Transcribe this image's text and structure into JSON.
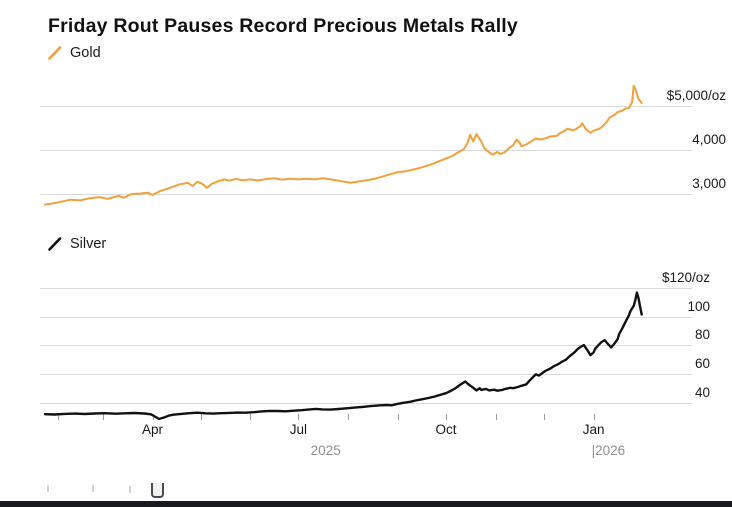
{
  "title": "Friday Rout Pauses Record Precious Metals Rally",
  "colors": {
    "gold": "#F2A13A",
    "silver": "#111111",
    "gridline": "#D9D9D9",
    "axis_text": "#1A1A1A",
    "muted_text": "#8F8F8F",
    "background": "#FFFFFF",
    "bottom_bar": "#171A1E"
  },
  "x_axis": {
    "start_date": "2025-01-24",
    "ticks_days": [
      8,
      36,
      67,
      97,
      128,
      158,
      189,
      220,
      250,
      281,
      311,
      342
    ],
    "month_labels": [
      {
        "day": 67,
        "label": "Apr"
      },
      {
        "day": 158,
        "label": "Jul"
      },
      {
        "day": 250,
        "label": "Oct"
      },
      {
        "day": 342,
        "label": "Jan"
      }
    ],
    "year_labels": [
      {
        "day": 175,
        "label": "2025",
        "align": "center"
      },
      {
        "day": 342,
        "label": "|2026",
        "align": "left"
      }
    ]
  },
  "chart_data": [
    {
      "id": "gold",
      "type": "line",
      "legend": "Gold",
      "unit": "USD per troy ounce",
      "y_axis": {
        "range": [
          2600,
          5550
        ],
        "grid": true,
        "labels": [
          {
            "value": 5000,
            "label": "$5,000/oz"
          },
          {
            "value": 4000,
            "label": "4,000"
          },
          {
            "value": 3000,
            "label": "3,000"
          }
        ]
      },
      "series": {
        "start_date": "2025-01-24",
        "interval": "days",
        "points": [
          [
            0,
            2760
          ],
          [
            7,
            2800
          ],
          [
            16,
            2870
          ],
          [
            22,
            2855
          ],
          [
            28,
            2905
          ],
          [
            34,
            2930
          ],
          [
            39,
            2890
          ],
          [
            46,
            2960
          ],
          [
            49,
            2915
          ],
          [
            54,
            3000
          ],
          [
            59,
            3010
          ],
          [
            64,
            3030
          ],
          [
            67,
            2980
          ],
          [
            72,
            3070
          ],
          [
            78,
            3140
          ],
          [
            84,
            3220
          ],
          [
            89,
            3250
          ],
          [
            92,
            3180
          ],
          [
            95,
            3275
          ],
          [
            98,
            3230
          ],
          [
            101,
            3140
          ],
          [
            104,
            3230
          ],
          [
            108,
            3290
          ],
          [
            112,
            3330
          ],
          [
            115,
            3300
          ],
          [
            119,
            3345
          ],
          [
            123,
            3310
          ],
          [
            128,
            3330
          ],
          [
            133,
            3305
          ],
          [
            138,
            3340
          ],
          [
            143,
            3355
          ],
          [
            148,
            3325
          ],
          [
            153,
            3345
          ],
          [
            158,
            3330
          ],
          [
            163,
            3345
          ],
          [
            168,
            3330
          ],
          [
            173,
            3355
          ],
          [
            178,
            3330
          ],
          [
            183,
            3300
          ],
          [
            188,
            3270
          ],
          [
            191,
            3255
          ],
          [
            195,
            3280
          ],
          [
            200,
            3310
          ],
          [
            205,
            3340
          ],
          [
            210,
            3390
          ],
          [
            215,
            3445
          ],
          [
            220,
            3495
          ],
          [
            225,
            3515
          ],
          [
            230,
            3555
          ],
          [
            235,
            3605
          ],
          [
            240,
            3660
          ],
          [
            245,
            3730
          ],
          [
            250,
            3800
          ],
          [
            254,
            3860
          ],
          [
            257,
            3930
          ],
          [
            261,
            4010
          ],
          [
            263,
            4120
          ],
          [
            265,
            4340
          ],
          [
            267,
            4190
          ],
          [
            269,
            4355
          ],
          [
            272,
            4190
          ],
          [
            274,
            4030
          ],
          [
            277,
            3940
          ],
          [
            279,
            3890
          ],
          [
            282,
            3950
          ],
          [
            284,
            3905
          ],
          [
            287,
            3955
          ],
          [
            289,
            4030
          ],
          [
            292,
            4110
          ],
          [
            294,
            4230
          ],
          [
            296,
            4160
          ],
          [
            297,
            4080
          ],
          [
            300,
            4120
          ],
          [
            303,
            4185
          ],
          [
            306,
            4255
          ],
          [
            309,
            4230
          ],
          [
            312,
            4260
          ],
          [
            315,
            4300
          ],
          [
            319,
            4315
          ],
          [
            321,
            4375
          ],
          [
            324,
            4430
          ],
          [
            326,
            4480
          ],
          [
            329,
            4440
          ],
          [
            331,
            4465
          ],
          [
            334,
            4545
          ],
          [
            335,
            4600
          ],
          [
            337,
            4480
          ],
          [
            340,
            4385
          ],
          [
            342,
            4430
          ],
          [
            345,
            4465
          ],
          [
            347,
            4510
          ],
          [
            350,
            4620
          ],
          [
            352,
            4730
          ],
          [
            355,
            4790
          ],
          [
            357,
            4850
          ],
          [
            360,
            4890
          ],
          [
            362,
            4930
          ],
          [
            364,
            4945
          ],
          [
            366,
            5080
          ],
          [
            367,
            5450
          ],
          [
            368,
            5380
          ],
          [
            370,
            5150
          ],
          [
            372,
            5060
          ]
        ]
      }
    },
    {
      "id": "silver",
      "type": "line",
      "legend": "Silver",
      "unit": "USD per troy ounce",
      "y_axis": {
        "range": [
          25,
          122
        ],
        "grid": true,
        "labels": [
          {
            "value": 120,
            "label": "$120/oz"
          },
          {
            "value": 100,
            "label": "100"
          },
          {
            "value": 80,
            "label": "80"
          },
          {
            "value": 60,
            "label": "60"
          },
          {
            "value": 40,
            "label": "40"
          }
        ]
      },
      "series": {
        "start_date": "2025-01-24",
        "interval": "days",
        "points": [
          [
            0,
            32.0
          ],
          [
            6,
            31.8
          ],
          [
            12,
            32.2
          ],
          [
            19,
            32.4
          ],
          [
            25,
            32.1
          ],
          [
            31,
            32.5
          ],
          [
            37,
            32.7
          ],
          [
            44,
            32.3
          ],
          [
            50,
            32.6
          ],
          [
            56,
            32.8
          ],
          [
            62,
            32.5
          ],
          [
            66,
            31.9
          ],
          [
            69,
            30.0
          ],
          [
            71,
            28.7
          ],
          [
            74,
            29.6
          ],
          [
            77,
            30.9
          ],
          [
            80,
            31.6
          ],
          [
            85,
            32.2
          ],
          [
            90,
            32.7
          ],
          [
            95,
            33.0
          ],
          [
            100,
            32.6
          ],
          [
            105,
            32.4
          ],
          [
            110,
            32.7
          ],
          [
            115,
            32.9
          ],
          [
            120,
            33.1
          ],
          [
            125,
            33.0
          ],
          [
            130,
            33.4
          ],
          [
            135,
            33.9
          ],
          [
            140,
            34.3
          ],
          [
            145,
            34.2
          ],
          [
            150,
            34.0
          ],
          [
            155,
            34.4
          ],
          [
            160,
            34.8
          ],
          [
            165,
            35.3
          ],
          [
            169,
            35.7
          ],
          [
            173,
            35.3
          ],
          [
            178,
            35.2
          ],
          [
            183,
            35.6
          ],
          [
            188,
            36.1
          ],
          [
            193,
            36.6
          ],
          [
            198,
            37.1
          ],
          [
            203,
            37.6
          ],
          [
            208,
            38.1
          ],
          [
            213,
            38.4
          ],
          [
            216,
            38.2
          ],
          [
            220,
            39.2
          ],
          [
            224,
            40.0
          ],
          [
            228,
            40.7
          ],
          [
            231,
            41.5
          ],
          [
            235,
            42.4
          ],
          [
            239,
            43.3
          ],
          [
            243,
            44.3
          ],
          [
            246,
            45.4
          ],
          [
            250,
            46.6
          ],
          [
            253,
            48.2
          ],
          [
            256,
            50.2
          ],
          [
            259,
            52.6
          ],
          [
            262,
            54.8
          ],
          [
            264,
            52.8
          ],
          [
            267,
            50.4
          ],
          [
            269,
            48.6
          ],
          [
            271,
            50.1
          ],
          [
            272,
            48.9
          ],
          [
            275,
            49.6
          ],
          [
            277,
            48.6
          ],
          [
            280,
            49.1
          ],
          [
            282,
            48.4
          ],
          [
            285,
            48.9
          ],
          [
            287,
            49.6
          ],
          [
            290,
            50.4
          ],
          [
            292,
            50.1
          ],
          [
            295,
            51.0
          ],
          [
            297,
            51.8
          ],
          [
            300,
            52.8
          ],
          [
            302,
            55.3
          ],
          [
            304,
            57.6
          ],
          [
            306,
            59.8
          ],
          [
            308,
            58.9
          ],
          [
            310,
            60.6
          ],
          [
            312,
            62.2
          ],
          [
            315,
            63.8
          ],
          [
            317,
            65.3
          ],
          [
            320,
            66.9
          ],
          [
            322,
            68.4
          ],
          [
            325,
            70.2
          ],
          [
            327,
            72.4
          ],
          [
            330,
            75.0
          ],
          [
            332,
            77.3
          ],
          [
            334,
            79.0
          ],
          [
            336,
            80.2
          ],
          [
            338,
            76.8
          ],
          [
            340,
            73.2
          ],
          [
            342,
            75.1
          ],
          [
            343,
            77.6
          ],
          [
            345,
            80.1
          ],
          [
            347,
            82.4
          ],
          [
            349,
            83.6
          ],
          [
            351,
            80.9
          ],
          [
            353,
            78.6
          ],
          [
            355,
            81.2
          ],
          [
            357,
            84.3
          ],
          [
            358,
            88.0
          ],
          [
            360,
            92.0
          ],
          [
            362,
            96.5
          ],
          [
            364,
            101.0
          ],
          [
            365,
            104.0
          ],
          [
            367,
            107.5
          ],
          [
            368,
            111.5
          ],
          [
            369,
            116.8
          ],
          [
            370,
            113.0
          ],
          [
            371,
            107.0
          ],
          [
            372,
            101.5
          ]
        ]
      }
    }
  ]
}
